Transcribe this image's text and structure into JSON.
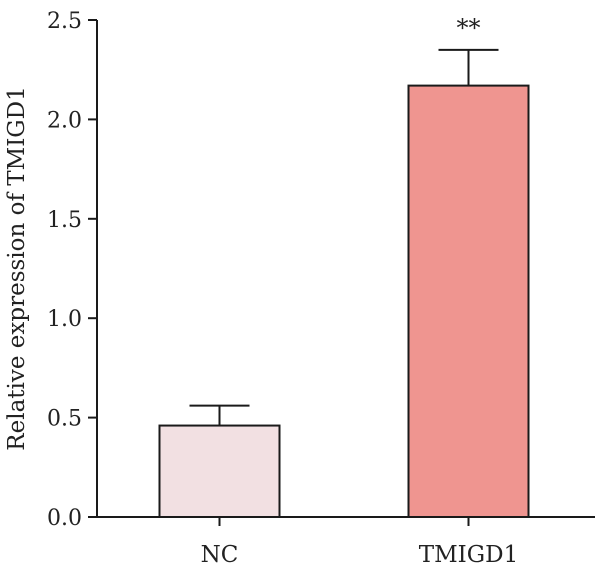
{
  "chart_data": {
    "type": "bar",
    "title": "",
    "xlabel": "",
    "ylabel": "Relative expression of TMIGD1",
    "categories": [
      "NC",
      "TMIGD1"
    ],
    "values": [
      0.46,
      2.17
    ],
    "error": [
      0.1,
      0.18
    ],
    "annotations": [
      "",
      "**"
    ],
    "ylim": [
      0,
      2.5
    ],
    "yticks": [
      0,
      0.5,
      1.0,
      1.5,
      2.0,
      2.5
    ],
    "ytick_labels": [
      "0.0",
      "0.5",
      "1.0",
      "1.5",
      "2.0",
      "2.5"
    ],
    "grid": false,
    "legend": "none",
    "bar_colors": [
      "#f2e0e2",
      "#ef9590"
    ],
    "edge_color": "#1a1a1a"
  }
}
